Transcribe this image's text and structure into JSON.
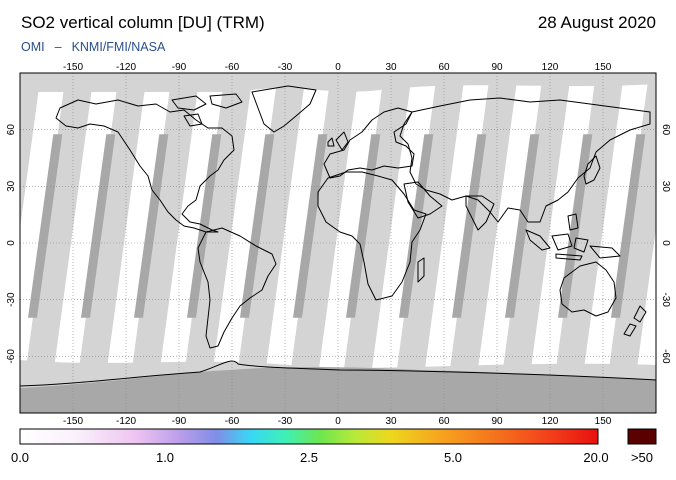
{
  "header": {
    "title": "SO2 vertical column [DU] (TRM)",
    "date": "28 August 2020",
    "credit_left": "OMI",
    "credit_sep": "–",
    "credit_right": "KNMI/FMI/NASA"
  },
  "map": {
    "lon_ticks_top": [
      "-150",
      "-120",
      "-90",
      "-60",
      "-30",
      "0",
      "30",
      "60",
      "90",
      "120",
      "150"
    ],
    "lon_ticks_bottom": [
      "-150",
      "-120",
      "-90",
      "-60",
      "-30",
      "0",
      "30",
      "60",
      "90",
      "120",
      "150"
    ],
    "lat_ticks_left": [
      "60",
      "30",
      "0",
      "-30",
      "-60"
    ],
    "lat_ticks_right": [
      "60",
      "30",
      "0",
      "-30",
      "-60"
    ],
    "colors": {
      "swath_light": "#d4d4d4",
      "swath_dark": "#a8a8a8",
      "no_data": "#a8a8a8",
      "coast": "#000000"
    }
  },
  "colorbar": {
    "labels": [
      "0.0",
      "1.0",
      "2.5",
      "5.0",
      "20.0"
    ],
    "overflow_label": ">50",
    "overflow_color": "#5a0000"
  }
}
